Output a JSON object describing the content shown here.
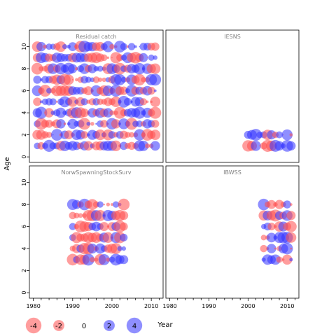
{
  "chart_data": {
    "type": "scatter",
    "ylabel": "Age",
    "xlabel": "Year",
    "xlim": [
      1979,
      2013
    ],
    "ylim": [
      -0.5,
      11.5
    ],
    "x_ticks": [
      1980,
      1990,
      2000,
      2010
    ],
    "y_ticks": [
      0,
      2,
      4,
      6,
      8,
      10
    ],
    "colors": {
      "positive": "#3333ff",
      "negative": "#ff4d4d"
    },
    "legend": {
      "labels": [
        "-4",
        "-2",
        "0",
        "2",
        "4"
      ],
      "values": [
        -4,
        -2,
        0,
        2,
        4
      ]
    },
    "panels": [
      {
        "name": "Residual catch",
        "position": "top-left",
        "years": [
          1981,
          2011
        ],
        "ages": [
          1,
          10
        ],
        "density": "full"
      },
      {
        "name": "IESNS",
        "position": "top-right",
        "years": [
          2000,
          2011
        ],
        "ages": [
          1,
          2
        ],
        "density": "full"
      },
      {
        "name": "NorwSpawningStockSurv",
        "position": "bottom-left",
        "years": [
          1990,
          2003
        ],
        "ages": [
          3,
          8
        ],
        "density": "full"
      },
      {
        "name": "IBWSS",
        "position": "bottom-right",
        "years": [
          2004,
          2011
        ],
        "ages": [
          3,
          8
        ],
        "density": "full"
      }
    ]
  }
}
